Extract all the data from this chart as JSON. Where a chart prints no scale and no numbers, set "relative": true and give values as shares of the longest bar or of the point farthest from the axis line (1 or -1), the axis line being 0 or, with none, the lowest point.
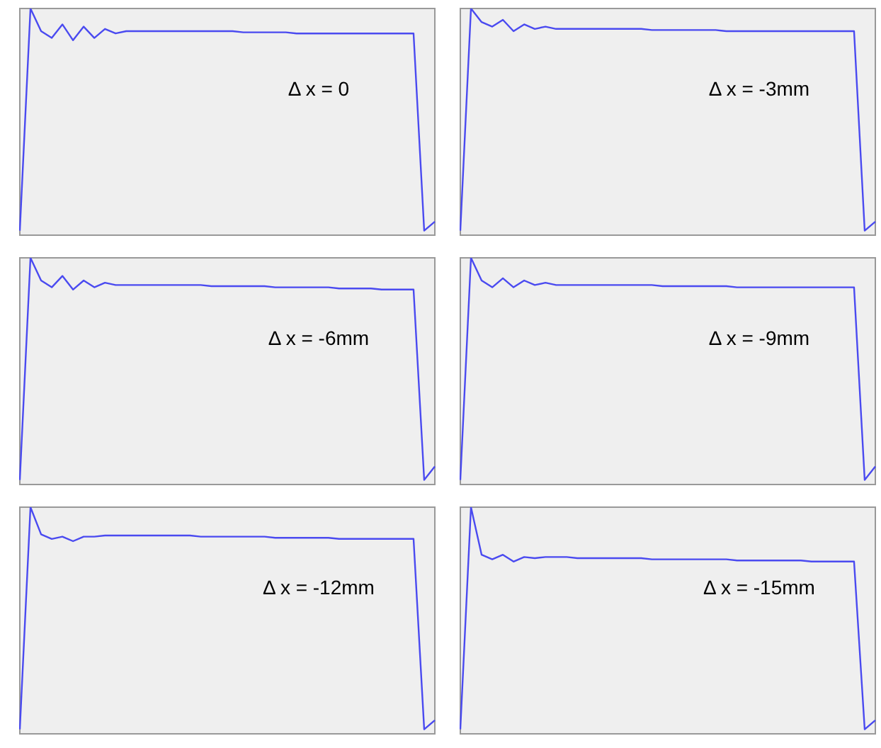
{
  "chart_data": [
    {
      "type": "line",
      "relative": true,
      "tick_labels": false,
      "grid": false,
      "legend": false,
      "marker": "none",
      "annotations": [
        "Δ x = 0"
      ],
      "categories": [
        null,
        null,
        null,
        null,
        null,
        null,
        null,
        null,
        null,
        null,
        null,
        null,
        null,
        null,
        null,
        null,
        null,
        null,
        null,
        null,
        null,
        null,
        null,
        null,
        null,
        null,
        null,
        null,
        null,
        null,
        null,
        null,
        null,
        null,
        null,
        null,
        null,
        null,
        null,
        null
      ],
      "series": [
        {
          "color": "#4a4af0",
          "values": [
            0.02,
            1,
            0.9,
            0.87,
            0.93,
            0.86,
            0.92,
            0.87,
            0.91,
            0.89,
            0.9,
            0.9,
            0.9,
            0.9,
            0.9,
            0.9,
            0.9,
            0.9,
            0.9,
            0.9,
            0.9,
            0.895,
            0.895,
            0.895,
            0.895,
            0.895,
            0.89,
            0.89,
            0.89,
            0.89,
            0.89,
            0.89,
            0.89,
            0.89,
            0.89,
            0.89,
            0.89,
            0.89,
            0.02,
            0.06
          ]
        }
      ]
    },
    {
      "type": "line",
      "relative": true,
      "tick_labels": false,
      "grid": false,
      "legend": false,
      "marker": "none",
      "annotations": [
        "Δ x = -3mm"
      ],
      "categories": [
        null,
        null,
        null,
        null,
        null,
        null,
        null,
        null,
        null,
        null,
        null,
        null,
        null,
        null,
        null,
        null,
        null,
        null,
        null,
        null,
        null,
        null,
        null,
        null,
        null,
        null,
        null,
        null,
        null,
        null,
        null,
        null,
        null,
        null,
        null,
        null,
        null,
        null,
        null,
        null
      ],
      "series": [
        {
          "color": "#4a4af0",
          "values": [
            0.02,
            1,
            0.94,
            0.92,
            0.95,
            0.9,
            0.93,
            0.91,
            0.92,
            0.91,
            0.91,
            0.91,
            0.91,
            0.91,
            0.91,
            0.91,
            0.91,
            0.91,
            0.905,
            0.905,
            0.905,
            0.905,
            0.905,
            0.905,
            0.905,
            0.9,
            0.9,
            0.9,
            0.9,
            0.9,
            0.9,
            0.9,
            0.9,
            0.9,
            0.9,
            0.9,
            0.9,
            0.9,
            0.02,
            0.06
          ]
        }
      ]
    },
    {
      "type": "line",
      "relative": true,
      "tick_labels": false,
      "grid": false,
      "legend": false,
      "marker": "none",
      "annotations": [
        "Δ x = -6mm"
      ],
      "categories": [
        null,
        null,
        null,
        null,
        null,
        null,
        null,
        null,
        null,
        null,
        null,
        null,
        null,
        null,
        null,
        null,
        null,
        null,
        null,
        null,
        null,
        null,
        null,
        null,
        null,
        null,
        null,
        null,
        null,
        null,
        null,
        null,
        null,
        null,
        null,
        null,
        null,
        null,
        null,
        null
      ],
      "series": [
        {
          "color": "#4a4af0",
          "values": [
            0.02,
            1,
            0.9,
            0.87,
            0.92,
            0.86,
            0.9,
            0.87,
            0.89,
            0.88,
            0.88,
            0.88,
            0.88,
            0.88,
            0.88,
            0.88,
            0.88,
            0.88,
            0.875,
            0.875,
            0.875,
            0.875,
            0.875,
            0.875,
            0.87,
            0.87,
            0.87,
            0.87,
            0.87,
            0.87,
            0.865,
            0.865,
            0.865,
            0.865,
            0.86,
            0.86,
            0.86,
            0.86,
            0.02,
            0.08
          ]
        }
      ]
    },
    {
      "type": "line",
      "relative": true,
      "tick_labels": false,
      "grid": false,
      "legend": false,
      "marker": "none",
      "annotations": [
        "Δ x = -9mm"
      ],
      "categories": [
        null,
        null,
        null,
        null,
        null,
        null,
        null,
        null,
        null,
        null,
        null,
        null,
        null,
        null,
        null,
        null,
        null,
        null,
        null,
        null,
        null,
        null,
        null,
        null,
        null,
        null,
        null,
        null,
        null,
        null,
        null,
        null,
        null,
        null,
        null,
        null,
        null,
        null,
        null,
        null
      ],
      "series": [
        {
          "color": "#4a4af0",
          "values": [
            0.02,
            1,
            0.9,
            0.87,
            0.91,
            0.87,
            0.9,
            0.88,
            0.89,
            0.88,
            0.88,
            0.88,
            0.88,
            0.88,
            0.88,
            0.88,
            0.88,
            0.88,
            0.88,
            0.875,
            0.875,
            0.875,
            0.875,
            0.875,
            0.875,
            0.875,
            0.87,
            0.87,
            0.87,
            0.87,
            0.87,
            0.87,
            0.87,
            0.87,
            0.87,
            0.87,
            0.87,
            0.87,
            0.02,
            0.08
          ]
        }
      ]
    },
    {
      "type": "line",
      "relative": true,
      "tick_labels": false,
      "grid": false,
      "legend": false,
      "marker": "none",
      "annotations": [
        "Δ x = -12mm"
      ],
      "categories": [
        null,
        null,
        null,
        null,
        null,
        null,
        null,
        null,
        null,
        null,
        null,
        null,
        null,
        null,
        null,
        null,
        null,
        null,
        null,
        null,
        null,
        null,
        null,
        null,
        null,
        null,
        null,
        null,
        null,
        null,
        null,
        null,
        null,
        null,
        null,
        null,
        null,
        null,
        null,
        null
      ],
      "series": [
        {
          "color": "#4a4af0",
          "values": [
            0.02,
            1,
            0.88,
            0.86,
            0.87,
            0.85,
            0.87,
            0.87,
            0.875,
            0.875,
            0.875,
            0.875,
            0.875,
            0.875,
            0.875,
            0.875,
            0.875,
            0.87,
            0.87,
            0.87,
            0.87,
            0.87,
            0.87,
            0.87,
            0.865,
            0.865,
            0.865,
            0.865,
            0.865,
            0.865,
            0.86,
            0.86,
            0.86,
            0.86,
            0.86,
            0.86,
            0.86,
            0.86,
            0.02,
            0.06
          ]
        }
      ]
    },
    {
      "type": "line",
      "relative": true,
      "tick_labels": false,
      "grid": false,
      "legend": false,
      "marker": "none",
      "annotations": [
        "Δ x = -15mm"
      ],
      "categories": [
        null,
        null,
        null,
        null,
        null,
        null,
        null,
        null,
        null,
        null,
        null,
        null,
        null,
        null,
        null,
        null,
        null,
        null,
        null,
        null,
        null,
        null,
        null,
        null,
        null,
        null,
        null,
        null,
        null,
        null,
        null,
        null,
        null,
        null,
        null,
        null,
        null,
        null,
        null,
        null
      ],
      "series": [
        {
          "color": "#4a4af0",
          "values": [
            0.02,
            1,
            0.79,
            0.77,
            0.79,
            0.76,
            0.78,
            0.775,
            0.78,
            0.78,
            0.78,
            0.775,
            0.775,
            0.775,
            0.775,
            0.775,
            0.775,
            0.775,
            0.77,
            0.77,
            0.77,
            0.77,
            0.77,
            0.77,
            0.77,
            0.77,
            0.765,
            0.765,
            0.765,
            0.765,
            0.765,
            0.765,
            0.765,
            0.76,
            0.76,
            0.76,
            0.76,
            0.76,
            0.02,
            0.06
          ]
        }
      ]
    }
  ]
}
